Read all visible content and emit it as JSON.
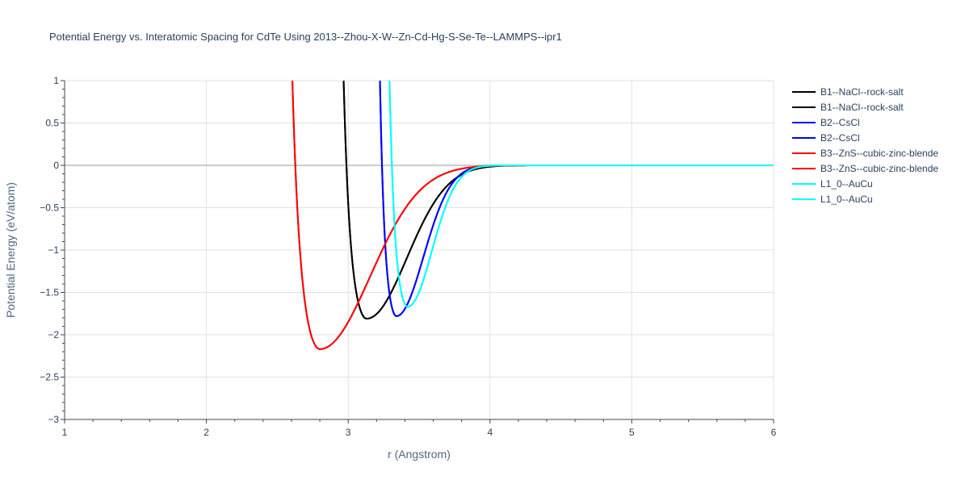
{
  "chart_data": {
    "type": "line",
    "title": "Potential Energy vs. Interatomic Spacing for CdTe Using 2013--Zhou-X-W--Zn-Cd-Hg-S-Se-Te--LAMMPS--ipr1",
    "xlabel": "r (Angstrom)",
    "ylabel": "Potential Energy (eV/atom)",
    "xlim": [
      1,
      6
    ],
    "ylim": [
      -3,
      1
    ],
    "xticks": [
      1,
      2,
      3,
      4,
      5,
      6
    ],
    "xtick_labels": [
      "1",
      "2",
      "3",
      "4",
      "5",
      "6"
    ],
    "yticks": [
      -3,
      -2.5,
      -2,
      -1.5,
      -1,
      -0.5,
      0,
      0.5,
      1
    ],
    "ytick_labels": [
      "−3",
      "−2.5",
      "−2",
      "−1.5",
      "−1",
      "−0.5",
      "0",
      "0.5",
      "1"
    ],
    "grid": true,
    "legend_position": "right",
    "series": [
      {
        "name": "B1--NaCl--rock-salt",
        "color": "#000000",
        "r0": 3.13,
        "e0": -1.81,
        "inner_sigma": 0.14,
        "outer_sigma": 0.4
      },
      {
        "name": "B1--NaCl--rock-salt",
        "color": "#000000",
        "r0": 3.13,
        "e0": -1.81,
        "inner_sigma": 0.14,
        "outer_sigma": 0.4
      },
      {
        "name": "B2--CsCl",
        "color": "#0000ff",
        "r0": 3.34,
        "e0": -1.78,
        "inner_sigma": 0.1,
        "outer_sigma": 0.27
      },
      {
        "name": "B2--CsCl",
        "color": "#0000ff",
        "r0": 3.34,
        "e0": -1.78,
        "inner_sigma": 0.1,
        "outer_sigma": 0.27
      },
      {
        "name": "B3--ZnS--cubic-zinc-blende",
        "color": "#ff0000",
        "r0": 2.8,
        "e0": -2.17,
        "inner_sigma": 0.17,
        "outer_sigma": 0.5
      },
      {
        "name": "B3--ZnS--cubic-zinc-blende",
        "color": "#ff0000",
        "r0": 2.8,
        "e0": -2.17,
        "inner_sigma": 0.17,
        "outer_sigma": 0.5
      },
      {
        "name": "L1_0--AuCu",
        "color": "#00ffff",
        "r0": 3.42,
        "e0": -1.67,
        "inner_sigma": 0.11,
        "outer_sigma": 0.24
      },
      {
        "name": "L1_0--AuCu",
        "color": "#00ffff",
        "r0": 3.42,
        "e0": -1.67,
        "inner_sigma": 0.11,
        "outer_sigma": 0.24
      }
    ]
  }
}
